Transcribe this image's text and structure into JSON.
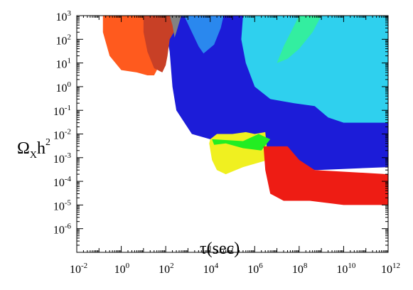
{
  "chart_data": {
    "type": "area",
    "title": "",
    "xlabel": "τ(sec)",
    "ylabel_parts": {
      "main": "Ω",
      "sub": "X",
      "h": "h",
      "sup": "2"
    },
    "xscale": "log",
    "yscale": "log",
    "xlim": [
      0.01,
      1000000000000
    ],
    "ylim": [
      1e-07,
      1000
    ],
    "grid": false,
    "legend": "none",
    "x_ticks": [
      {
        "base": "10",
        "exp": "-2"
      },
      {
        "base": "10",
        "exp": "0"
      },
      {
        "base": "10",
        "exp": "2"
      },
      {
        "base": "10",
        "exp": "4"
      },
      {
        "base": "10",
        "exp": "6"
      },
      {
        "base": "10",
        "exp": "8"
      },
      {
        "base": "10",
        "exp": "10"
      },
      {
        "base": "10",
        "exp": "12"
      }
    ],
    "y_ticks": [
      {
        "base": "10",
        "exp": "3"
      },
      {
        "base": "10",
        "exp": "2"
      },
      {
        "base": "10",
        "exp": "1"
      },
      {
        "base": "10",
        "exp": "0"
      },
      {
        "base": "10",
        "exp": "-1"
      },
      {
        "base": "10",
        "exp": "-2"
      },
      {
        "base": "10",
        "exp": "-3"
      },
      {
        "base": "10",
        "exp": "-4"
      },
      {
        "base": "10",
        "exp": "-5"
      },
      {
        "base": "10",
        "exp": "-6"
      }
    ],
    "regions": [
      {
        "color": "#1c1cd8",
        "points": [
          [
            200,
            1000
          ],
          [
            1000000000000,
            1000
          ],
          [
            1000000000000,
            0.0004
          ],
          [
            700000000,
            0.0003
          ],
          [
            40000000,
            0.0003
          ],
          [
            4000000,
            0.0008
          ],
          [
            300000,
            0.0025
          ],
          [
            50000,
            0.004
          ],
          [
            10000,
            0.006
          ],
          [
            1500,
            0.01
          ],
          [
            300,
            0.1
          ],
          [
            200,
            1
          ],
          [
            150,
            30
          ],
          [
            120,
            100
          ],
          [
            100,
            80
          ],
          [
            130,
            1000
          ]
        ]
      },
      {
        "color": "#2a88ee",
        "points": [
          [
            300,
            1000
          ],
          [
            40000,
            1000
          ],
          [
            30000,
            300
          ],
          [
            15000,
            60
          ],
          [
            5000,
            25
          ],
          [
            3000,
            50
          ],
          [
            1500,
            200
          ],
          [
            700,
            900
          ]
        ]
      },
      {
        "color": "#2fd0ee",
        "points": [
          [
            300000,
            1000
          ],
          [
            1000000000000,
            1000
          ],
          [
            1000000000000,
            0.03
          ],
          [
            10000000000,
            0.03
          ],
          [
            2000000000,
            0.05
          ],
          [
            500000000,
            0.15
          ],
          [
            60000000,
            0.2
          ],
          [
            5000000,
            0.3
          ],
          [
            1000000,
            1
          ],
          [
            400000,
            10
          ],
          [
            250000,
            100
          ]
        ]
      },
      {
        "color": "#33eea0",
        "points": [
          [
            100000000,
            1000
          ],
          [
            1000000000,
            1000
          ],
          [
            400000000,
            200
          ],
          [
            100000000,
            40
          ],
          [
            30000000,
            15
          ],
          [
            10000000,
            10
          ],
          [
            20000000,
            50
          ]
        ]
      },
      {
        "color": "#f0f020",
        "points": [
          [
            20000,
            0.01
          ],
          [
            100000,
            0.01
          ],
          [
            400000,
            0.012
          ],
          [
            1000000,
            0.01
          ],
          [
            3000000,
            0.012
          ],
          [
            4000000,
            0.0008
          ],
          [
            300000,
            0.0004
          ],
          [
            50000,
            0.0002
          ],
          [
            20000,
            0.0003
          ],
          [
            12000,
            0.0008
          ],
          [
            9000,
            0.004
          ],
          [
            10000,
            0.006
          ]
        ]
      },
      {
        "color": "#22ee22",
        "points": [
          [
            12000,
            0.006
          ],
          [
            300000,
            0.005
          ],
          [
            1500000,
            0.01
          ],
          [
            5000000,
            0.006
          ],
          [
            2000000,
            0.002
          ],
          [
            300000,
            0.0025
          ],
          [
            50000,
            0.004
          ],
          [
            15000,
            0.0035
          ]
        ]
      },
      {
        "color": "#ee1c14",
        "points": [
          [
            2500000,
            0.003
          ],
          [
            30000000,
            0.003
          ],
          [
            100000000,
            0.0008
          ],
          [
            500000000,
            0.0003
          ],
          [
            1000000000000,
            0.0002
          ],
          [
            1000000000000,
            1e-05
          ],
          [
            10000000000,
            1e-05
          ],
          [
            300000000,
            1.5e-05
          ],
          [
            20000000,
            1.5e-05
          ],
          [
            5000000,
            3e-05
          ],
          [
            3000000,
            0.0003
          ]
        ]
      },
      {
        "color": "#ff5a1e",
        "points": [
          [
            0.15,
            1000
          ],
          [
            150,
            1000
          ],
          [
            100,
            400
          ],
          [
            60,
            100
          ],
          [
            50,
            20
          ],
          [
            40,
            5
          ],
          [
            30,
            3
          ],
          [
            15,
            3
          ],
          [
            5,
            4
          ],
          [
            1,
            5
          ],
          [
            0.3,
            20
          ],
          [
            0.15,
            200
          ]
        ]
      },
      {
        "color": "#c84026",
        "points": [
          [
            10,
            1000
          ],
          [
            500,
            1000
          ],
          [
            300,
            300
          ],
          [
            150,
            100
          ],
          [
            120,
            20
          ],
          [
            100,
            8
          ],
          [
            70,
            4
          ],
          [
            30,
            6
          ],
          [
            15,
            30
          ],
          [
            10,
            200
          ]
        ]
      },
      {
        "color": "#828282",
        "points": [
          [
            150,
            1000
          ],
          [
            500,
            1000
          ],
          [
            300,
            200
          ],
          [
            250,
            120
          ],
          [
            200,
            400
          ]
        ]
      }
    ]
  }
}
